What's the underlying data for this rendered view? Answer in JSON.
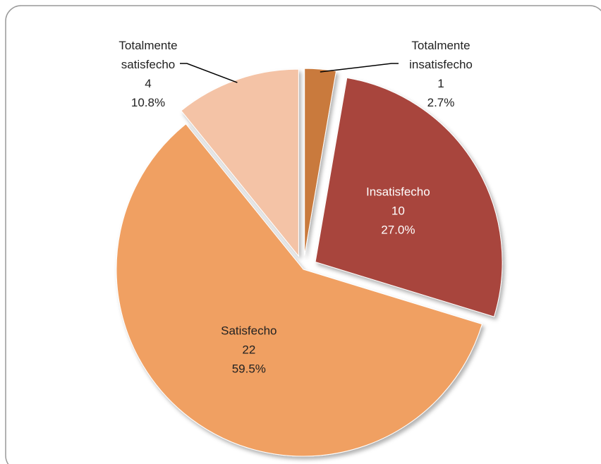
{
  "chart_data": {
    "type": "pie",
    "categories": [
      "Totalmente insatisfecho",
      "Insatisfecho",
      "Satisfecho",
      "Totalmente satisfecho"
    ],
    "values": [
      1,
      10,
      22,
      4
    ],
    "percent_labels": [
      "2.7%",
      "27.0%",
      "59.5%",
      "10.8%"
    ],
    "colors": [
      "#c97a3e",
      "#a8453c",
      "#f0a062",
      "#f4c3a6"
    ]
  }
}
